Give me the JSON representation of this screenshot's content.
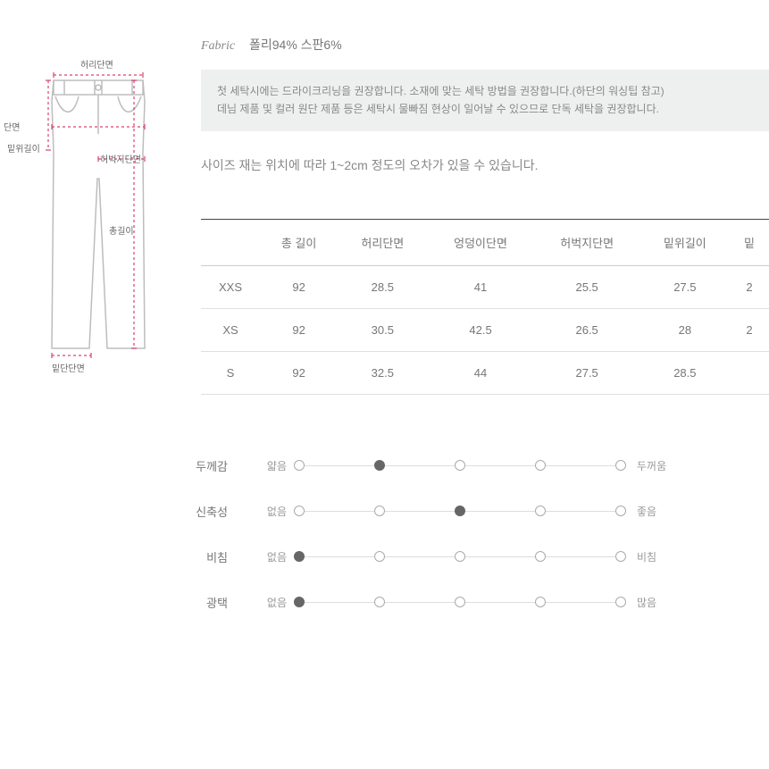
{
  "fabric": {
    "label": "Fabric",
    "value": "폴리94% 스판6%"
  },
  "notice": {
    "line1": "첫 세탁시에는 드라이크리닝을 권장합니다. 소재에 맞는 세탁 방법을 권장합니다.(하단의 워싱팁 참고)",
    "line2": "데님 제품 및 컬러 원단 제품 등은 세탁시 물빠짐 현상이 일어날 수 있으므로 단독 세탁을 권장합니다."
  },
  "sizenote": "사이즈 재는 위치에 따라 1~2cm 정도의 오차가 있을 수 있습니다.",
  "diagram_labels": {
    "waist": "허리단면",
    "hip_partial": "단면",
    "rise": "밑위길이",
    "thigh": "허벅지단면",
    "length": "총길이",
    "hem": "밑단단면"
  },
  "table": {
    "columns": [
      "",
      "총 길이",
      "허리단면",
      "엉덩이단면",
      "허벅지단면",
      "밑위길이",
      "밑"
    ],
    "rows": [
      [
        "XXS",
        "92",
        "28.5",
        "41",
        "25.5",
        "27.5",
        "2"
      ],
      [
        "XS",
        "92",
        "30.5",
        "42.5",
        "26.5",
        "28",
        "2"
      ],
      [
        "S",
        "92",
        "32.5",
        "44",
        "27.5",
        "28.5",
        ""
      ]
    ]
  },
  "attributes": [
    {
      "label": "두께감",
      "left": "얇음",
      "right": "두꺼움",
      "selected": 1,
      "count": 5
    },
    {
      "label": "신축성",
      "left": "없음",
      "right": "좋음",
      "selected": 2,
      "count": 5
    },
    {
      "label": "비침",
      "left": "없음",
      "right": "비침",
      "selected": 0,
      "count": 5
    },
    {
      "label": "광택",
      "left": "없음",
      "right": "많음",
      "selected": 0,
      "count": 5
    }
  ],
  "colors": {
    "measure_line": "#d9436b",
    "outline": "#bdbdbd"
  }
}
